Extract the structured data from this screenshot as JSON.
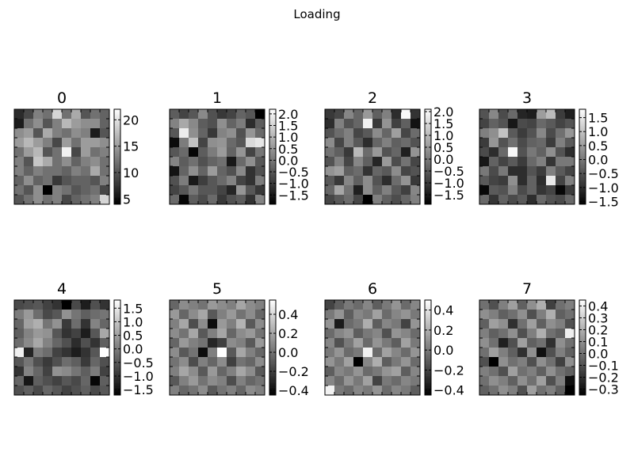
{
  "figure": {
    "title": "Loading"
  },
  "chart_data": {
    "type": "heatmap",
    "title": "Loading",
    "colormap": "gray",
    "grid_shape": [
      10,
      10
    ],
    "panels": [
      {
        "title": "0",
        "vmin": 4,
        "vmax": 22,
        "colorbar_ticks": [
          5,
          10,
          15,
          20
        ],
        "colorbar_labels": [
          "5",
          "10",
          "15",
          "20"
        ],
        "values": [
          [
            7,
            9,
            13,
            12,
            19,
            12,
            16,
            10,
            12,
            11
          ],
          [
            6,
            12,
            14,
            10,
            13,
            17,
            15,
            14,
            14,
            11
          ],
          [
            14,
            15,
            10,
            16,
            13,
            12,
            14,
            13,
            6,
            10
          ],
          [
            15,
            17,
            15,
            13,
            9,
            15,
            12,
            15,
            15,
            14
          ],
          [
            12,
            15,
            17,
            10,
            12,
            21,
            9,
            15,
            12,
            13
          ],
          [
            13,
            10,
            18,
            16,
            12,
            14,
            11,
            13,
            14,
            12
          ],
          [
            13,
            11,
            13,
            12,
            12,
            11,
            13,
            12,
            16,
            12
          ],
          [
            11,
            14,
            11,
            12,
            8,
            10,
            11,
            11,
            10,
            13
          ],
          [
            12,
            10,
            14,
            4,
            13,
            12,
            10,
            11,
            12,
            9
          ],
          [
            10,
            12,
            14,
            12,
            13,
            9,
            11,
            12,
            13,
            19
          ]
        ]
      },
      {
        "title": "1",
        "vmin": -1.9,
        "vmax": 2.2,
        "colorbar_ticks": [
          -1.5,
          -1.0,
          -0.5,
          0.0,
          0.5,
          1.0,
          1.5,
          2.0
        ],
        "colorbar_labels": [
          "−1.5",
          "−1.0",
          "−0.5",
          "0.0",
          "0.5",
          "1.0",
          "1.5",
          "2.0"
        ],
        "values": [
          [
            -0.4,
            -0.8,
            -0.5,
            0.3,
            -0.6,
            -1.0,
            -0.8,
            -0.3,
            -0.5,
            -1.9
          ],
          [
            0.2,
            0.8,
            0.3,
            -0.4,
            -0.6,
            0.4,
            -0.3,
            0.1,
            -1.2,
            -0.4
          ],
          [
            -0.5,
            1.9,
            0.4,
            -0.3,
            -1.0,
            0.2,
            0.4,
            -0.6,
            0.5,
            -0.2
          ],
          [
            -1.7,
            0.1,
            1.2,
            -0.8,
            0.4,
            0.5,
            -0.2,
            -0.5,
            1.6,
            1.8
          ],
          [
            -0.5,
            -0.2,
            -1.8,
            -0.4,
            0.1,
            0.6,
            -0.3,
            0.5,
            -0.8,
            0.0
          ],
          [
            0.2,
            -0.4,
            -0.1,
            -0.6,
            -0.3,
            -0.1,
            -1.5,
            -0.2,
            0.4,
            -0.5
          ],
          [
            -1.6,
            -0.3,
            0.4,
            -0.3,
            0.6,
            -0.3,
            -0.6,
            0.3,
            -1.1,
            -0.6
          ],
          [
            -0.6,
            0.1,
            -1.5,
            -0.9,
            -0.5,
            -0.2,
            0.2,
            -0.8,
            -1.1,
            0.1
          ],
          [
            -0.8,
            -0.5,
            0.0,
            -0.5,
            -0.5,
            -0.8,
            -1.3,
            0.5,
            -0.5,
            -1.0
          ],
          [
            -0.2,
            -1.8,
            -0.4,
            -0.7,
            -0.2,
            -1.0,
            -0.6,
            -0.4,
            -1.1,
            0.2
          ]
        ]
      },
      {
        "title": "2",
        "vmin": -1.9,
        "vmax": 2.1,
        "colorbar_ticks": [
          -1.5,
          -1.0,
          -0.5,
          0.0,
          0.5,
          1.0,
          1.5,
          2.0
        ],
        "colorbar_labels": [
          "−1.5",
          "−1.0",
          "−0.5",
          "0.0",
          "0.5",
          "1.0",
          "1.5",
          "2.0"
        ],
        "values": [
          [
            -1.0,
            -0.8,
            0.2,
            -0.3,
            0.5,
            -0.4,
            0.1,
            -1.2,
            2.0,
            -1.1
          ],
          [
            -1.2,
            0.1,
            -0.6,
            -0.3,
            1.9,
            -1.0,
            0.4,
            -0.9,
            -0.4,
            -1.6
          ],
          [
            -0.6,
            -0.2,
            0.1,
            -0.8,
            -0.5,
            0.3,
            -0.3,
            0.6,
            -0.8,
            -0.2
          ],
          [
            0.3,
            -0.8,
            0.1,
            -0.5,
            -1.2,
            -0.3,
            0.1,
            -0.4,
            -0.2,
            -0.6
          ],
          [
            -0.1,
            -0.4,
            -1.0,
            1.0,
            -0.2,
            0.5,
            -0.6,
            -0.3,
            -1.4,
            0.4
          ],
          [
            -0.6,
            0.1,
            -0.8,
            0.2,
            -0.4,
            -1.3,
            0.5,
            -0.7,
            -0.1,
            -0.8
          ],
          [
            0.4,
            0.6,
            -0.4,
            -0.2,
            -1.1,
            -0.3,
            -0.5,
            0.3,
            -0.8,
            -0.6
          ],
          [
            -0.5,
            -1.0,
            0.2,
            -0.4,
            0.3,
            -0.6,
            -1.2,
            -0.2,
            0.4,
            -1.0
          ],
          [
            -0.3,
            0.7,
            -0.1,
            -1.4,
            0.3,
            -0.4,
            0.1,
            -0.5,
            -0.9,
            0.2
          ],
          [
            -0.8,
            -0.5,
            -0.2,
            -0.8,
            -1.9,
            0.1,
            -0.4,
            -0.7,
            -0.3,
            0.1
          ]
        ]
      },
      {
        "title": "3",
        "vmin": -1.6,
        "vmax": 1.8,
        "colorbar_ticks": [
          -1.5,
          -1.0,
          -0.5,
          0.0,
          0.5,
          1.0,
          1.5
        ],
        "colorbar_labels": [
          "−1.5",
          "−1.0",
          "−0.5",
          "0.0",
          "0.5",
          "1.0",
          "1.5"
        ],
        "values": [
          [
            -0.5,
            0.2,
            -0.6,
            -0.2,
            -1.1,
            -1.2,
            0.5,
            0.9,
            -0.8,
            -1.2
          ],
          [
            -0.7,
            -0.3,
            -0.5,
            -1.3,
            -0.6,
            -0.7,
            -0.2,
            -0.4,
            -0.7,
            -0.5
          ],
          [
            0.1,
            0.3,
            1.0,
            -0.4,
            -0.8,
            -0.5,
            0.2,
            -0.6,
            -0.1,
            0.4
          ],
          [
            -0.8,
            0.4,
            -0.5,
            -0.1,
            -0.6,
            -0.3,
            -0.2,
            -0.8,
            0.1,
            -0.4
          ],
          [
            -0.6,
            -1.0,
            -0.2,
            1.7,
            -0.5,
            0.0,
            -0.3,
            0.3,
            -0.5,
            -1.0
          ],
          [
            -1.3,
            -0.3,
            -0.7,
            -0.4,
            -0.8,
            -0.2,
            0.1,
            -0.9,
            0.0,
            0.0
          ],
          [
            0.0,
            -0.6,
            0.0,
            -1.0,
            -1.0,
            -0.5,
            -0.8,
            0.1,
            -0.4,
            -0.7
          ],
          [
            -0.4,
            -0.7,
            -0.8,
            0.3,
            -1.0,
            -0.3,
            -1.0,
            1.5,
            -0.7,
            0.1
          ],
          [
            -1.5,
            -0.4,
            -0.5,
            0.1,
            -0.6,
            -0.3,
            -0.9,
            -0.7,
            -1.5,
            -0.8
          ],
          [
            -0.2,
            -0.9,
            -0.3,
            -0.6,
            -0.4,
            -1.0,
            -0.2,
            -0.5,
            -0.6,
            -0.2
          ]
        ]
      },
      {
        "title": "4",
        "vmin": -1.7,
        "vmax": 1.8,
        "colorbar_ticks": [
          -1.5,
          -1.0,
          -0.5,
          0.0,
          0.5,
          1.0,
          1.5
        ],
        "colorbar_labels": [
          "−1.5",
          "−1.0",
          "−0.5",
          "0.0",
          "0.5",
          "1.0",
          "1.5"
        ],
        "values": [
          [
            -0.7,
            -0.6,
            -0.5,
            -0.8,
            -1.0,
            -1.7,
            -0.7,
            -1.3,
            -0.6,
            -1.0
          ],
          [
            0.0,
            0.4,
            -0.2,
            -0.7,
            -0.5,
            0.3,
            -0.1,
            -0.4,
            -0.2,
            -0.1
          ],
          [
            -0.3,
            0.5,
            0.7,
            -0.1,
            0.3,
            -0.9,
            -0.2,
            -1.0,
            0.1,
            -0.3
          ],
          [
            -0.4,
            0.1,
            0.4,
            0.3,
            -0.5,
            -1.0,
            -0.8,
            -1.3,
            -0.5,
            0.6
          ],
          [
            -0.2,
            0.2,
            0.6,
            0.1,
            -0.3,
            -0.6,
            -1.1,
            -0.6,
            -1.0,
            -0.4
          ],
          [
            1.6,
            -1.2,
            0.0,
            -0.2,
            -0.8,
            -1.0,
            -1.3,
            -1.0,
            -0.5,
            1.8
          ],
          [
            -0.5,
            -0.1,
            -0.6,
            -0.9,
            -0.6,
            -0.2,
            -0.4,
            -0.9,
            -0.3,
            -0.6
          ],
          [
            -1.0,
            0.1,
            -0.3,
            -0.8,
            0.3,
            0.2,
            -0.1,
            -0.4,
            0.0,
            -0.8
          ],
          [
            -0.3,
            -1.4,
            -0.4,
            -0.6,
            -0.8,
            -0.5,
            -0.7,
            -0.3,
            -1.6,
            -0.4
          ],
          [
            -0.6,
            -0.4,
            -0.7,
            -0.3,
            -0.5,
            -0.8,
            -0.6,
            -0.4,
            -0.7,
            -0.5
          ]
        ]
      },
      {
        "title": "5",
        "vmin": -0.45,
        "vmax": 0.55,
        "colorbar_ticks": [
          -0.4,
          -0.2,
          0.0,
          0.2,
          0.4
        ],
        "colorbar_labels": [
          "−0.4",
          "−0.2",
          "0.0",
          "0.2",
          "0.4"
        ],
        "values": [
          [
            -0.05,
            0.1,
            0.05,
            0.0,
            0.15,
            0.1,
            0.05,
            0.2,
            0.1,
            0.05
          ],
          [
            0.15,
            -0.05,
            0.1,
            0.2,
            -0.1,
            0.05,
            0.15,
            0.0,
            0.1,
            -0.05
          ],
          [
            0.05,
            0.2,
            -0.15,
            0.1,
            -0.4,
            0.15,
            0.05,
            0.25,
            -0.1,
            0.1
          ],
          [
            0.1,
            0.0,
            0.2,
            -0.1,
            0.05,
            0.2,
            -0.05,
            0.1,
            0.15,
            0.0
          ],
          [
            -0.05,
            0.15,
            0.05,
            0.0,
            -0.3,
            -0.2,
            0.1,
            0.05,
            -0.1,
            0.15
          ],
          [
            0.1,
            -0.1,
            0.0,
            -0.4,
            0.05,
            0.55,
            -0.1,
            0.2,
            0.05,
            -0.05
          ],
          [
            0.0,
            0.1,
            -0.15,
            0.05,
            -0.05,
            0.1,
            -0.2,
            0.0,
            -0.05,
            0.1
          ],
          [
            0.05,
            0.2,
            0.1,
            -0.1,
            0.15,
            -0.05,
            0.05,
            0.2,
            0.1,
            -0.1
          ],
          [
            -0.1,
            0.05,
            0.15,
            0.0,
            0.1,
            0.05,
            -0.15,
            0.05,
            -0.05,
            0.0
          ],
          [
            0.05,
            -0.05,
            0.0,
            0.1,
            -0.1,
            0.0,
            0.05,
            -0.05,
            0.1,
            0.05
          ]
        ]
      },
      {
        "title": "6",
        "vmin": -0.45,
        "vmax": 0.5,
        "colorbar_ticks": [
          -0.4,
          -0.2,
          0.0,
          0.2,
          0.4
        ],
        "colorbar_labels": [
          "−0.4",
          "−0.2",
          "0.0",
          "0.2",
          "0.4"
        ],
        "values": [
          [
            -0.2,
            -0.1,
            0.0,
            -0.05,
            0.05,
            -0.1,
            0.0,
            0.1,
            -0.05,
            0.05
          ],
          [
            0.0,
            0.1,
            -0.1,
            0.05,
            0.0,
            0.15,
            -0.05,
            0.05,
            0.1,
            0.0
          ],
          [
            0.1,
            -0.35,
            -0.05,
            0.0,
            0.2,
            -0.1,
            0.05,
            0.0,
            -0.2,
            0.1
          ],
          [
            -0.05,
            0.05,
            0.1,
            -0.1,
            0.0,
            0.05,
            -0.15,
            0.1,
            0.05,
            -0.05
          ],
          [
            0.05,
            -0.15,
            0.0,
            0.15,
            -0.05,
            0.1,
            0.0,
            -0.1,
            0.15,
            0.0
          ],
          [
            0.0,
            0.1,
            -0.05,
            0.0,
            0.45,
            -0.05,
            0.15,
            0.05,
            -0.05,
            0.1
          ],
          [
            0.1,
            0.0,
            0.15,
            -0.45,
            0.05,
            0.2,
            -0.1,
            0.0,
            0.1,
            -0.05
          ],
          [
            -0.1,
            0.05,
            0.0,
            0.1,
            -0.05,
            0.0,
            0.1,
            0.15,
            -0.1,
            0.05
          ],
          [
            0.05,
            -0.05,
            0.1,
            0.0,
            0.15,
            -0.2,
            0.0,
            -0.05,
            0.05,
            0.0
          ],
          [
            0.45,
            0.0,
            -0.05,
            0.05,
            0.0,
            0.1,
            -0.05,
            0.05,
            0.0,
            -0.1
          ]
        ]
      },
      {
        "title": "7",
        "vmin": -0.35,
        "vmax": 0.45,
        "colorbar_ticks": [
          -0.3,
          -0.2,
          -0.1,
          0.0,
          0.1,
          0.2,
          0.3,
          0.4
        ],
        "colorbar_labels": [
          "−0.3",
          "−0.2",
          "−0.1",
          "0.0",
          "0.1",
          "0.2",
          "0.3",
          "0.4"
        ],
        "values": [
          [
            0.0,
            -0.1,
            0.05,
            0.15,
            -0.05,
            0.1,
            0.2,
            -0.15,
            0.0,
            0.05
          ],
          [
            0.1,
            0.05,
            -0.05,
            0.0,
            0.1,
            -0.1,
            0.05,
            0.2,
            -0.05,
            0.0
          ],
          [
            -0.05,
            0.15,
            0.1,
            -0.2,
            0.0,
            0.15,
            -0.05,
            0.1,
            0.05,
            -0.1
          ],
          [
            0.05,
            -0.05,
            0.0,
            0.1,
            -0.1,
            0.05,
            0.2,
            0.0,
            -0.05,
            0.4
          ],
          [
            0.1,
            0.0,
            -0.25,
            -0.1,
            0.15,
            -0.05,
            0.0,
            -0.2,
            0.1,
            0.0
          ],
          [
            0.0,
            0.15,
            0.05,
            -0.05,
            -0.2,
            0.1,
            -0.3,
            -0.1,
            0.05,
            -0.05
          ],
          [
            -0.1,
            -0.35,
            0.1,
            0.0,
            0.05,
            -0.1,
            0.1,
            0.0,
            -0.15,
            0.1
          ],
          [
            0.05,
            0.0,
            -0.1,
            0.15,
            0.0,
            0.05,
            -0.05,
            0.1,
            0.0,
            -0.05
          ],
          [
            0.0,
            0.1,
            0.05,
            -0.05,
            0.1,
            0.0,
            0.15,
            -0.1,
            0.05,
            -0.3
          ],
          [
            -0.05,
            0.0,
            0.1,
            0.05,
            -0.1,
            0.15,
            0.0,
            0.05,
            -0.05,
            -0.35
          ]
        ]
      }
    ]
  }
}
